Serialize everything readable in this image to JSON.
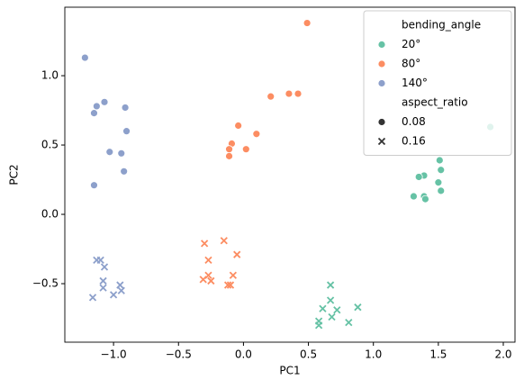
{
  "chart_data": {
    "type": "scatter",
    "x_label": "PC1",
    "y_label": "PC2",
    "xlim": [
      -1.375,
      2.09
    ],
    "ylim": [
      -0.922,
      1.494
    ],
    "xticks": [
      {
        "value": -1.0,
        "label": "−1.0"
      },
      {
        "value": -0.5,
        "label": "−0.5"
      },
      {
        "value": 0.0,
        "label": "0.0"
      },
      0.5,
      {
        "value": 1.0,
        "label": "1.0"
      },
      1.5,
      {
        "value": 2.0,
        "label": "2.0"
      }
    ],
    "yticks": [
      {
        "value": -0.5,
        "label": "−0.5"
      },
      {
        "value": 0.0,
        "label": "0.0"
      },
      0.5,
      {
        "value": 1.0,
        "label": "1.0"
      }
    ],
    "grid": false,
    "legend_loc": "upper right",
    "hue_title": "bending_angle",
    "style_title": "aspect_ratio",
    "style_levels": [
      {
        "name": "0.08",
        "marker": "circle"
      },
      {
        "name": "0.16",
        "marker": "x"
      }
    ],
    "series": [
      {
        "name": "20°",
        "color": "#66c2a5",
        "styles": [
          {
            "x": [
              1.9,
              1.51,
              1.52,
              1.39,
              1.35,
              1.5,
              1.52,
              1.31,
              1.39,
              1.4
            ],
            "y": [
              0.63,
              0.39,
              0.32,
              0.28,
              0.27,
              0.23,
              0.17,
              0.13,
              0.13,
              0.11
            ]
          },
          {
            "x": [
              0.67,
              0.67,
              0.88,
              0.61,
              0.72,
              0.68,
              0.81,
              0.58,
              0.58
            ],
            "y": [
              -0.51,
              -0.62,
              -0.67,
              -0.68,
              -0.69,
              -0.74,
              -0.78,
              -0.77,
              -0.8
            ]
          }
        ]
      },
      {
        "name": "80°",
        "color": "#fc8d62",
        "styles": [
          {
            "x": [
              0.49,
              0.42,
              0.35,
              0.21,
              -0.04,
              0.1,
              -0.09,
              -0.11,
              0.02,
              -0.11
            ],
            "y": [
              1.38,
              0.87,
              0.87,
              0.85,
              0.64,
              0.58,
              0.51,
              0.47,
              0.47,
              0.42
            ]
          },
          {
            "x": [
              -0.15,
              -0.3,
              -0.05,
              -0.27,
              -0.08,
              -0.27,
              -0.31,
              -0.25,
              -0.1,
              -0.12
            ],
            "y": [
              -0.19,
              -0.21,
              -0.29,
              -0.33,
              -0.44,
              -0.44,
              -0.47,
              -0.48,
              -0.51,
              -0.51
            ]
          }
        ]
      },
      {
        "name": "140°",
        "color": "#8da0cb",
        "styles": [
          {
            "x": [
              -1.22,
              -1.13,
              -1.07,
              -0.91,
              -1.15,
              -0.9,
              -1.03,
              -0.94,
              -0.92,
              -1.15
            ],
            "y": [
              1.13,
              0.78,
              0.81,
              0.77,
              0.73,
              0.6,
              0.45,
              0.44,
              0.31,
              0.21
            ]
          },
          {
            "x": [
              -1.13,
              -1.1,
              -1.07,
              -1.08,
              -0.95,
              -1.08,
              -0.94,
              -1.0,
              -1.16
            ],
            "y": [
              -0.33,
              -0.33,
              -0.38,
              -0.48,
              -0.51,
              -0.53,
              -0.55,
              -0.58,
              -0.6
            ]
          }
        ]
      }
    ]
  }
}
